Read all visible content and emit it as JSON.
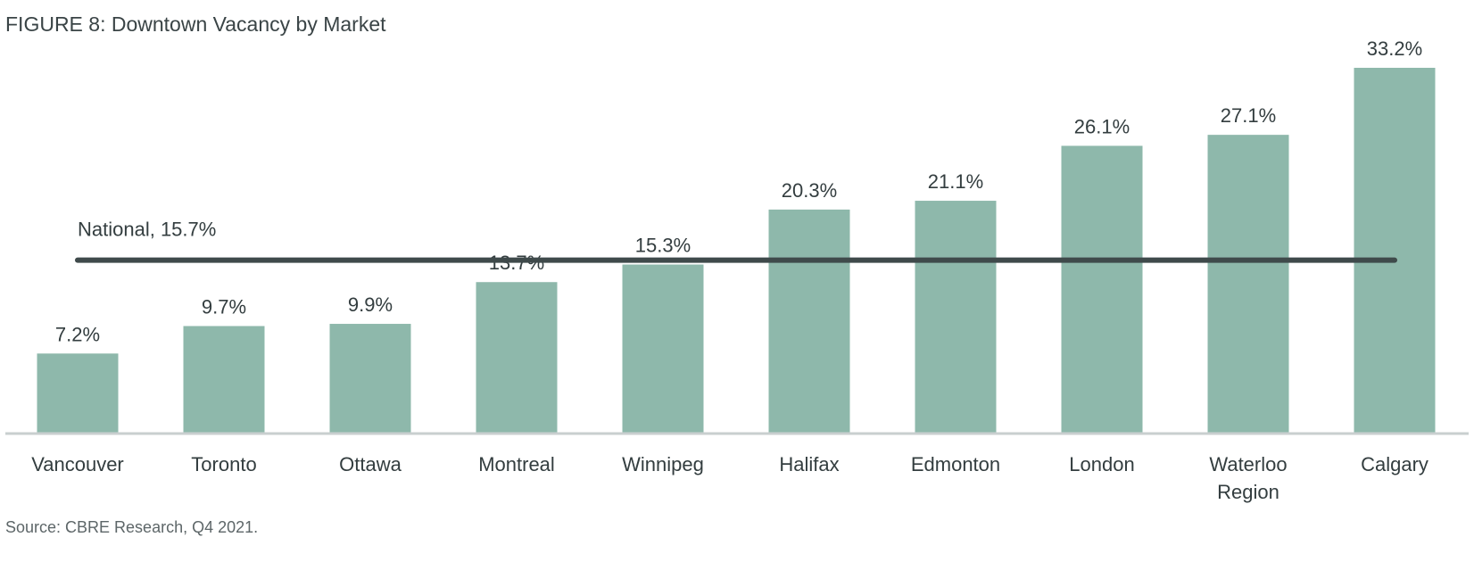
{
  "title": "FIGURE 8: Downtown Vacancy by Market",
  "source": "Source: CBRE Research, Q4 2021.",
  "chart_data": {
    "type": "bar",
    "categories": [
      [
        "Vancouver"
      ],
      [
        "Toronto"
      ],
      [
        "Ottawa"
      ],
      [
        "Montreal"
      ],
      [
        "Winnipeg"
      ],
      [
        "Halifax"
      ],
      [
        "Edmonton"
      ],
      [
        "London"
      ],
      [
        "Waterloo",
        "Region"
      ],
      [
        "Calgary"
      ]
    ],
    "values": [
      7.2,
      9.7,
      9.9,
      13.7,
      15.3,
      20.3,
      21.1,
      26.1,
      27.1,
      33.2
    ],
    "value_labels": [
      "7.2%",
      "9.7%",
      "9.9%",
      "13.7%",
      "15.3%",
      "20.3%",
      "21.1%",
      "26.1%",
      "27.1%",
      "33.2%"
    ],
    "ylim": [
      0,
      33.2
    ],
    "reference_line": {
      "label": "National, 15.7%",
      "value": 15.7
    },
    "bar_color": "#8eb8ab",
    "line_color": "#3f4a4b",
    "axis_color": "#c9cfcf",
    "grid": false
  }
}
